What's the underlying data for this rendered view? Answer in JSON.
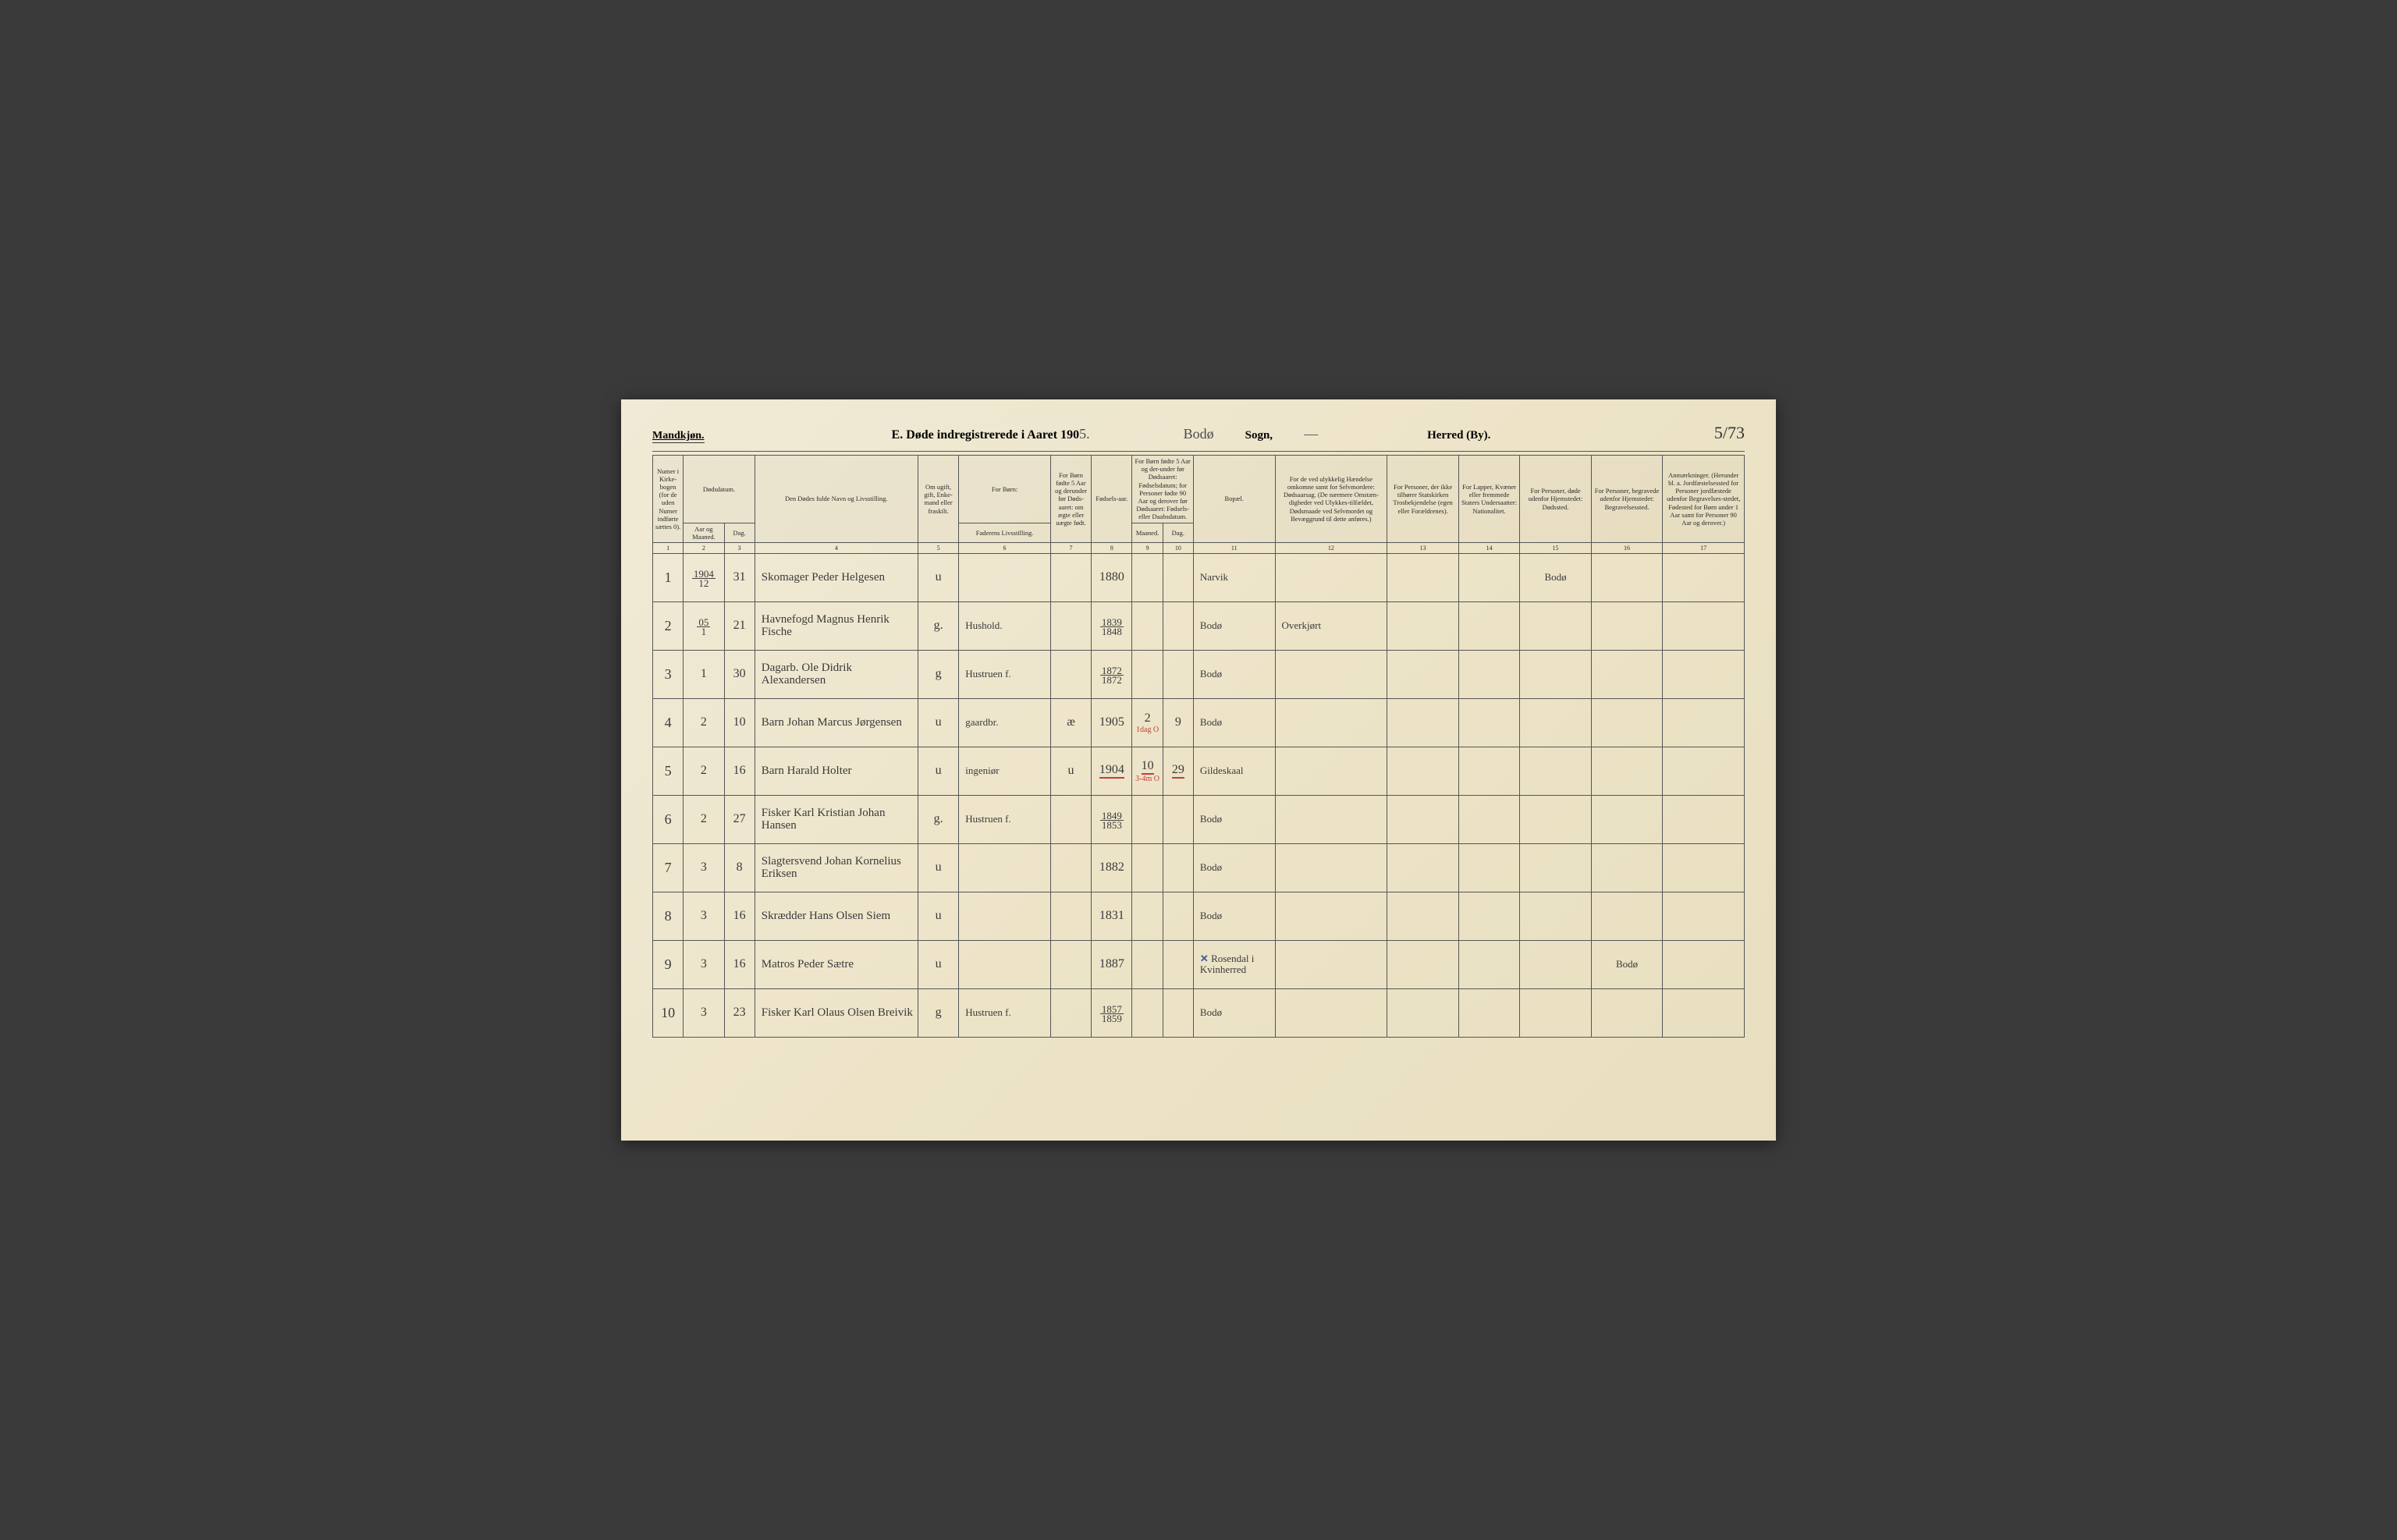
{
  "header": {
    "gender": "Mandkjøn.",
    "title_prefix": "E.   Døde indregistrerede i Aaret 190",
    "year_suffix": "5.",
    "parish_hand": "Bodø",
    "sogn_label": "Sogn,",
    "sogn_hand": "—",
    "herred_label": "Herred (By).",
    "page_number": "5/73"
  },
  "columns": {
    "c1": "Numer i Kirke-bogen (for de uden Numer indførte sættes 0).",
    "c2_top": "Dødsdatum.",
    "c2": "Aar og Maaned.",
    "c3": "Dag.",
    "c4": "Den Dødes fulde Navn og Livsstilling.",
    "c5": "Om ugift, gift, Enke-mand eller fraskilt.",
    "c6_top": "For Børn:",
    "c6": "Faderens Livsstilling.",
    "c7": "For Børn fødte 5 Aar og derunder før Døds-aaret: om ægte eller uægte født.",
    "c8": "Fødsels-aar.",
    "c9_top": "For Børn fødte 5 Aar og der-under før Dødsaaret: Fødselsdatum; for Personer fødte 90 Aar og derover før Dødsaaret: Fødsels- eller Daabsdatum.",
    "c9": "Maaned.",
    "c10": "Dag.",
    "c11": "Bopæl.",
    "c12": "For de ved ulykkelig Hændelse omkomne samt for Selvmordere: Dødsaarsag. (De nærmere Omstæn-digheder ved Ulykkes-tilfældet, Dødsmaade ved Selvmordet og Bevæggrund til dette anføres.)",
    "c13": "For Personer, der ikke tilhører Statskirken Trosbekjendelse (egen eller Forældrenes).",
    "c14": "For Lapper, Kvæner eller fremmede Staters Undersaatter: Nationalitet.",
    "c15": "For Personer, døde udenfor Hjemstedet: Dødssted.",
    "c16": "For Personer, begravede udenfor Hjemstedet: Begravelsessted.",
    "c17": "Anmærkninger. (Herunder bl. a. Jordfæstelsessted for Personer jordfæstede udenfor Begravelses-stedet, Fødested for Børn under 1 Aar samt for Personer 90 Aar og derover.)"
  },
  "colnums": [
    "1",
    "2",
    "3",
    "4",
    "5",
    "6",
    "7",
    "8",
    "9",
    "10",
    "11",
    "12",
    "13",
    "14",
    "15",
    "16",
    "17"
  ],
  "rows": [
    {
      "no": "1",
      "yr": "1904/12",
      "day": "31",
      "name": "Skomager Peder Helgesen",
      "status": "u",
      "father": "",
      "legit": "",
      "byear": "1880",
      "m": "",
      "d": "",
      "place": "Narvik",
      "cause": "",
      "rel": "",
      "nat": "",
      "death": "Bodø",
      "burial": "",
      "note": ""
    },
    {
      "no": "2",
      "yr": "05/1",
      "day": "21",
      "name": "Havnefogd Magnus Henrik Fische",
      "status": "g.",
      "father": "Hushold.",
      "legit": "",
      "byear": "1839/1848",
      "m": "",
      "d": "",
      "place": "Bodø",
      "cause": "Overkjørt",
      "rel": "",
      "nat": "",
      "death": "",
      "burial": "",
      "note": ""
    },
    {
      "no": "3",
      "yr": "1",
      "day": "30",
      "name": "Dagarb. Ole Didrik Alexandersen",
      "status": "g",
      "father": "Hustruen f.",
      "legit": "",
      "byear": "1872/1872",
      "m": "",
      "d": "",
      "place": "Bodø",
      "cause": "",
      "rel": "",
      "nat": "",
      "death": "",
      "burial": "",
      "note": ""
    },
    {
      "no": "4",
      "yr": "2",
      "day": "10",
      "name": "Barn Johan Marcus Jørgensen",
      "status": "u",
      "father": "gaardbr.",
      "legit": "æ",
      "byear": "1905",
      "m": "2",
      "d": "9",
      "place": "Bodø",
      "cause": "",
      "rel": "",
      "nat": "",
      "death": "",
      "burial": "",
      "note": "",
      "mark": "1dag O"
    },
    {
      "no": "5",
      "yr": "2",
      "day": "16",
      "name": "Barn Harald Holter",
      "status": "u",
      "father": "ingeniør",
      "legit": "u",
      "byear": "1904",
      "m": "10",
      "d": "29",
      "place": "Gildeskaal",
      "cause": "",
      "rel": "",
      "nat": "",
      "death": "",
      "burial": "",
      "note": "",
      "mark": "3-4m O",
      "redline": true
    },
    {
      "no": "6",
      "yr": "2",
      "day": "27",
      "name": "Fisker Karl Kristian Johan Hansen",
      "status": "g.",
      "father": "Hustruen f.",
      "legit": "",
      "byear": "1849/1853",
      "m": "",
      "d": "",
      "place": "Bodø",
      "cause": "",
      "rel": "",
      "nat": "",
      "death": "",
      "burial": "",
      "note": ""
    },
    {
      "no": "7",
      "yr": "3",
      "day": "8",
      "name": "Slagtersvend Johan Kornelius Eriksen",
      "status": "u",
      "father": "",
      "legit": "",
      "byear": "1882",
      "m": "",
      "d": "",
      "place": "Bodø",
      "cause": "",
      "rel": "",
      "nat": "",
      "death": "",
      "burial": "",
      "note": ""
    },
    {
      "no": "8",
      "yr": "3",
      "day": "16",
      "name": "Skrædder Hans Olsen Siem",
      "status": "u",
      "father": "",
      "legit": "",
      "byear": "1831",
      "m": "",
      "d": "",
      "place": "Bodø",
      "cause": "",
      "rel": "",
      "nat": "",
      "death": "",
      "burial": "",
      "note": ""
    },
    {
      "no": "9",
      "yr": "3",
      "day": "16",
      "name": "Matros Peder Sætre",
      "status": "u",
      "father": "",
      "legit": "",
      "byear": "1887",
      "m": "",
      "d": "",
      "place": "Rosendal i Kvinherred",
      "cause": "",
      "rel": "",
      "nat": "",
      "death": "",
      "burial": "Bodø",
      "note": "",
      "bluex": true
    },
    {
      "no": "10",
      "yr": "3",
      "day": "23",
      "name": "Fisker Karl Olaus Olsen Breivik",
      "status": "g",
      "father": "Hustruen f.",
      "legit": "",
      "byear": "1857/1859",
      "m": "",
      "d": "",
      "place": "Bodø",
      "cause": "",
      "rel": "",
      "nat": "",
      "death": "",
      "burial": "",
      "note": ""
    }
  ],
  "style": {
    "paper_bg": "#ede4c8",
    "ink": "#2a2a2a",
    "handwriting": "#3a3a3a",
    "red": "#c04040",
    "blue": "#3a5a9a",
    "border": "#555555",
    "header_font_pt": 9,
    "body_font_pt": 16,
    "col_widths_pct": [
      3,
      4,
      3,
      16,
      4,
      9,
      4,
      4,
      3,
      3,
      8,
      11,
      7,
      6,
      7,
      7,
      8
    ]
  }
}
